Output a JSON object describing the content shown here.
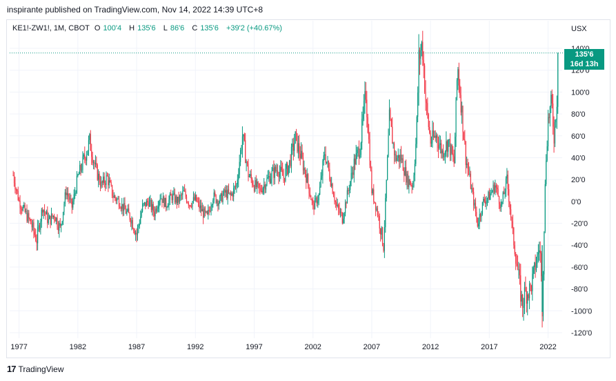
{
  "header": {
    "published": "inspirante published on TradingView.com, Nov 14, 2022 14:39 UTC+8"
  },
  "legend": {
    "symbol": "KE1!-ZW1!, 1M, CBOT",
    "o_label": "O",
    "o_value": "100'4",
    "h_label": "H",
    "h_value": "135'6",
    "l_label": "L",
    "l_value": "86'6",
    "c_label": "C",
    "c_value": "135'6",
    "change": "+39'2 (+40.67%)"
  },
  "price_tag": {
    "price": "135'6",
    "countdown": "16d 13h"
  },
  "footer": {
    "logo": "17",
    "brand": "TradingView"
  },
  "colors": {
    "up": "#089981",
    "down": "#f23645",
    "grid": "#f0f3fa"
  },
  "chart_data": {
    "type": "candlestick",
    "currency": "USX",
    "ylim": [
      -120,
      140
    ],
    "y_ticks": [
      "140'0",
      "120'0",
      "100'0",
      "80'0",
      "60'0",
      "40'0",
      "20'0",
      "0'0",
      "-20'0",
      "-40'0",
      "-60'0",
      "-80'0",
      "-100'0",
      "-120'0"
    ],
    "y_tick_values": [
      140,
      120,
      100,
      80,
      60,
      40,
      20,
      0,
      -20,
      -40,
      -60,
      -80,
      -100,
      -120
    ],
    "x_ticks": [
      "1977",
      "1982",
      "1987",
      "1992",
      "1997",
      "2002",
      "2007",
      "2012",
      "2017",
      "2022"
    ],
    "x_tick_values": [
      1977,
      1982,
      1987,
      1992,
      1997,
      2002,
      2007,
      2012,
      2017,
      2022
    ],
    "xlim": [
      1976.2,
      2023.2
    ],
    "last_price": 135.75,
    "series": [
      {
        "values": [
          [
            1976.5,
            24
          ],
          [
            1977.0,
            0
          ],
          [
            1977.5,
            -10
          ],
          [
            1978.0,
            -20
          ],
          [
            1978.5,
            -35
          ],
          [
            1979.0,
            -5
          ],
          [
            1979.5,
            -18
          ],
          [
            1980.0,
            -12
          ],
          [
            1980.5,
            -25
          ],
          [
            1981.0,
            10
          ],
          [
            1981.5,
            -5
          ],
          [
            1982.0,
            22
          ],
          [
            1982.5,
            38
          ],
          [
            1983.0,
            55
          ],
          [
            1983.5,
            30
          ],
          [
            1984.0,
            15
          ],
          [
            1984.5,
            22
          ],
          [
            1985.0,
            5
          ],
          [
            1985.5,
            0
          ],
          [
            1986.0,
            -8
          ],
          [
            1986.5,
            -15
          ],
          [
            1987.0,
            -30
          ],
          [
            1987.5,
            -5
          ],
          [
            1988.0,
            0
          ],
          [
            1988.5,
            -10
          ],
          [
            1989.0,
            5
          ],
          [
            1989.5,
            -3
          ],
          [
            1990.0,
            5
          ],
          [
            1990.5,
            0
          ],
          [
            1991.0,
            8
          ],
          [
            1991.5,
            -2
          ],
          [
            1992.0,
            2
          ],
          [
            1992.5,
            -8
          ],
          [
            1993.0,
            -15
          ],
          [
            1993.5,
            5
          ],
          [
            1994.0,
            0
          ],
          [
            1994.5,
            8
          ],
          [
            1995.0,
            5
          ],
          [
            1995.5,
            15
          ],
          [
            1996.0,
            60
          ],
          [
            1996.5,
            25
          ],
          [
            1997.0,
            15
          ],
          [
            1997.5,
            10
          ],
          [
            1998.0,
            18
          ],
          [
            1998.5,
            25
          ],
          [
            1999.0,
            30
          ],
          [
            1999.5,
            22
          ],
          [
            2000.0,
            35
          ],
          [
            2000.5,
            58
          ],
          [
            2001.0,
            40
          ],
          [
            2001.5,
            20
          ],
          [
            2002.0,
            -5
          ],
          [
            2002.5,
            5
          ],
          [
            2003.0,
            45
          ],
          [
            2003.5,
            20
          ],
          [
            2004.0,
            -5
          ],
          [
            2004.5,
            -15
          ],
          [
            2005.0,
            10
          ],
          [
            2005.5,
            35
          ],
          [
            2006.0,
            50
          ],
          [
            2006.5,
            100
          ],
          [
            2007.0,
            10
          ],
          [
            2007.5,
            -10
          ],
          [
            2008.0,
            -40
          ],
          [
            2008.5,
            75
          ],
          [
            2009.0,
            40
          ],
          [
            2009.5,
            40
          ],
          [
            2010.0,
            20
          ],
          [
            2010.5,
            15
          ],
          [
            2010.8,
            60
          ],
          [
            2011.0,
            130
          ],
          [
            2011.3,
            145
          ],
          [
            2011.6,
            90
          ],
          [
            2012.0,
            55
          ],
          [
            2012.5,
            60
          ],
          [
            2013.0,
            45
          ],
          [
            2013.5,
            55
          ],
          [
            2014.0,
            35
          ],
          [
            2014.3,
            125
          ],
          [
            2014.6,
            90
          ],
          [
            2015.0,
            40
          ],
          [
            2015.5,
            10
          ],
          [
            2016.0,
            -20
          ],
          [
            2016.5,
            0
          ],
          [
            2017.0,
            5
          ],
          [
            2017.5,
            15
          ],
          [
            2018.0,
            -5
          ],
          [
            2018.5,
            20
          ],
          [
            2019.0,
            -30
          ],
          [
            2019.5,
            -70
          ],
          [
            2019.8,
            -95
          ],
          [
            2020.0,
            -85
          ],
          [
            2020.5,
            -80
          ],
          [
            2021.0,
            -55
          ],
          [
            2021.3,
            -40
          ],
          [
            2021.5,
            -95
          ],
          [
            2021.8,
            35
          ],
          [
            2022.0,
            75
          ],
          [
            2022.3,
            90
          ],
          [
            2022.5,
            60
          ],
          [
            2022.8,
            100
          ],
          [
            2022.9,
            135.75
          ]
        ]
      }
    ]
  }
}
